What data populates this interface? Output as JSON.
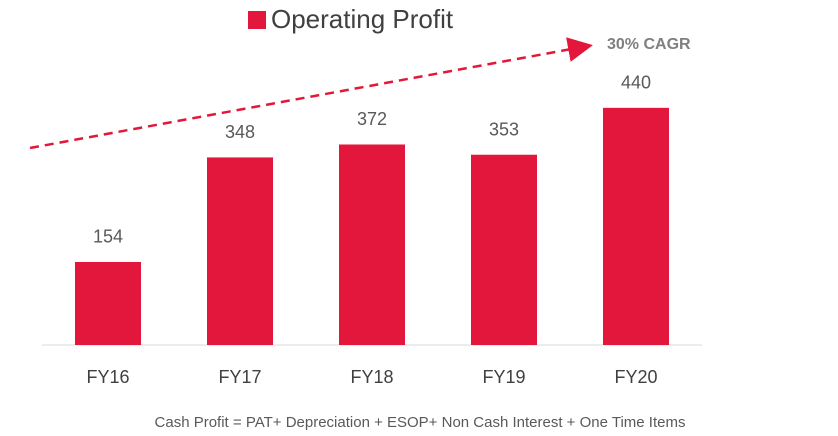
{
  "chart_data": {
    "type": "bar",
    "legend": "Operating Profit",
    "annotation": "30% CAGR",
    "footnote": "Cash Profit = PAT+ Depreciation + ESOP+ Non Cash Interest + One Time Items",
    "categories": [
      "FY16",
      "FY17",
      "FY18",
      "FY19",
      "FY20"
    ],
    "values": [
      154,
      348,
      372,
      353,
      440
    ],
    "color": "#e3173b",
    "ylim": [
      0,
      500
    ]
  }
}
